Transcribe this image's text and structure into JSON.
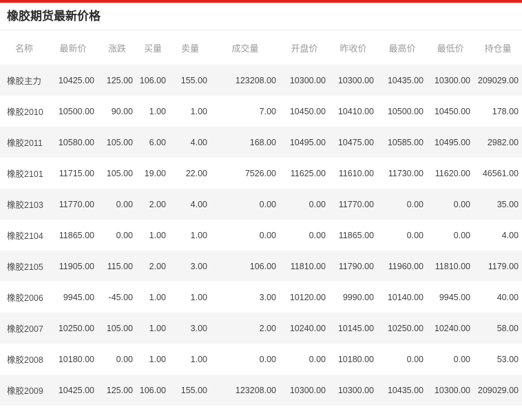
{
  "page": {
    "title": "橡胶期货最新价格"
  },
  "colors": {
    "accent_bar_red": "#e2231a",
    "price_up_red": "#ff1e0e",
    "price_down_green": "#0a9b0a",
    "neutral_text": "#404040",
    "header_text_gray": "#9b9b9b",
    "row_stripe": "#f5f5f5"
  },
  "table": {
    "headers": [
      "名称",
      "最新价",
      "涨跌",
      "买量",
      "卖量",
      "成交量",
      "开盘价",
      "昨收价",
      "最高价",
      "最低价",
      "持仓量"
    ],
    "header_keys": [
      "name",
      "latest-price",
      "change",
      "buy-volume",
      "sell-volume",
      "volume",
      "open-price",
      "prev-close",
      "high-price",
      "low-price",
      "open-interest"
    ],
    "rows": [
      {
        "name": "橡胶主力",
        "cells": [
          {
            "v": "10425.00",
            "c": "red"
          },
          {
            "v": "125.00",
            "c": "red"
          },
          {
            "v": "106.00",
            "c": "dark"
          },
          {
            "v": "155.00",
            "c": "dark"
          },
          {
            "v": "123208.00",
            "c": "dark"
          },
          {
            "v": "10300.00",
            "c": "dark"
          },
          {
            "v": "10300.00",
            "c": "dark"
          },
          {
            "v": "10435.00",
            "c": "red"
          },
          {
            "v": "10300.00",
            "c": "dark"
          },
          {
            "v": "209029.00",
            "c": "dark"
          }
        ]
      },
      {
        "name": "橡胶2010",
        "cells": [
          {
            "v": "10500.00",
            "c": "red"
          },
          {
            "v": "90.00",
            "c": "red"
          },
          {
            "v": "1.00",
            "c": "dark"
          },
          {
            "v": "1.00",
            "c": "dark"
          },
          {
            "v": "7.00",
            "c": "dark"
          },
          {
            "v": "10450.00",
            "c": "red"
          },
          {
            "v": "10410.00",
            "c": "dark"
          },
          {
            "v": "10500.00",
            "c": "red"
          },
          {
            "v": "10450.00",
            "c": "red"
          },
          {
            "v": "178.00",
            "c": "dark"
          }
        ]
      },
      {
        "name": "橡胶2011",
        "cells": [
          {
            "v": "10580.00",
            "c": "red"
          },
          {
            "v": "105.00",
            "c": "red"
          },
          {
            "v": "6.00",
            "c": "dark"
          },
          {
            "v": "4.00",
            "c": "dark"
          },
          {
            "v": "168.00",
            "c": "dark"
          },
          {
            "v": "10495.00",
            "c": "red"
          },
          {
            "v": "10475.00",
            "c": "dark"
          },
          {
            "v": "10585.00",
            "c": "red"
          },
          {
            "v": "10495.00",
            "c": "red"
          },
          {
            "v": "2982.00",
            "c": "dark"
          }
        ]
      },
      {
        "name": "橡胶2101",
        "cells": [
          {
            "v": "11715.00",
            "c": "red"
          },
          {
            "v": "105.00",
            "c": "red"
          },
          {
            "v": "19.00",
            "c": "dark"
          },
          {
            "v": "22.00",
            "c": "dark"
          },
          {
            "v": "7526.00",
            "c": "dark"
          },
          {
            "v": "11625.00",
            "c": "red"
          },
          {
            "v": "11610.00",
            "c": "dark"
          },
          {
            "v": "11730.00",
            "c": "red"
          },
          {
            "v": "11620.00",
            "c": "red"
          },
          {
            "v": "46561.00",
            "c": "dark"
          }
        ]
      },
      {
        "name": "橡胶2103",
        "cells": [
          {
            "v": "11770.00",
            "c": "dark"
          },
          {
            "v": "0.00",
            "c": "dark"
          },
          {
            "v": "2.00",
            "c": "dark"
          },
          {
            "v": "4.00",
            "c": "dark"
          },
          {
            "v": "0.00",
            "c": "dark"
          },
          {
            "v": "0.00",
            "c": "dark"
          },
          {
            "v": "11770.00",
            "c": "dark"
          },
          {
            "v": "0.00",
            "c": "dark"
          },
          {
            "v": "0.00",
            "c": "dark"
          },
          {
            "v": "35.00",
            "c": "dark"
          }
        ]
      },
      {
        "name": "橡胶2104",
        "cells": [
          {
            "v": "11865.00",
            "c": "dark"
          },
          {
            "v": "0.00",
            "c": "dark"
          },
          {
            "v": "1.00",
            "c": "dark"
          },
          {
            "v": "1.00",
            "c": "dark"
          },
          {
            "v": "0.00",
            "c": "dark"
          },
          {
            "v": "0.00",
            "c": "dark"
          },
          {
            "v": "11865.00",
            "c": "dark"
          },
          {
            "v": "0.00",
            "c": "dark"
          },
          {
            "v": "0.00",
            "c": "dark"
          },
          {
            "v": "4.00",
            "c": "dark"
          }
        ]
      },
      {
        "name": "橡胶2105",
        "cells": [
          {
            "v": "11905.00",
            "c": "red"
          },
          {
            "v": "115.00",
            "c": "red"
          },
          {
            "v": "2.00",
            "c": "dark"
          },
          {
            "v": "3.00",
            "c": "dark"
          },
          {
            "v": "106.00",
            "c": "dark"
          },
          {
            "v": "11810.00",
            "c": "red"
          },
          {
            "v": "11790.00",
            "c": "dark"
          },
          {
            "v": "11960.00",
            "c": "red"
          },
          {
            "v": "11810.00",
            "c": "red"
          },
          {
            "v": "1179.00",
            "c": "dark"
          }
        ]
      },
      {
        "name": "橡胶2006",
        "cells": [
          {
            "v": "9945.00",
            "c": "green"
          },
          {
            "v": "-45.00",
            "c": "green"
          },
          {
            "v": "1.00",
            "c": "dark"
          },
          {
            "v": "1.00",
            "c": "dark"
          },
          {
            "v": "3.00",
            "c": "dark"
          },
          {
            "v": "10120.00",
            "c": "red"
          },
          {
            "v": "9990.00",
            "c": "dark"
          },
          {
            "v": "10140.00",
            "c": "red"
          },
          {
            "v": "9945.00",
            "c": "green"
          },
          {
            "v": "40.00",
            "c": "dark"
          }
        ]
      },
      {
        "name": "橡胶2007",
        "cells": [
          {
            "v": "10250.00",
            "c": "red"
          },
          {
            "v": "105.00",
            "c": "red"
          },
          {
            "v": "1.00",
            "c": "dark"
          },
          {
            "v": "3.00",
            "c": "dark"
          },
          {
            "v": "2.00",
            "c": "dark"
          },
          {
            "v": "10240.00",
            "c": "red"
          },
          {
            "v": "10145.00",
            "c": "dark"
          },
          {
            "v": "10250.00",
            "c": "red"
          },
          {
            "v": "10240.00",
            "c": "red"
          },
          {
            "v": "58.00",
            "c": "dark"
          }
        ]
      },
      {
        "name": "橡胶2008",
        "cells": [
          {
            "v": "10180.00",
            "c": "dark"
          },
          {
            "v": "0.00",
            "c": "dark"
          },
          {
            "v": "1.00",
            "c": "dark"
          },
          {
            "v": "1.00",
            "c": "dark"
          },
          {
            "v": "0.00",
            "c": "dark"
          },
          {
            "v": "0.00",
            "c": "dark"
          },
          {
            "v": "10180.00",
            "c": "dark"
          },
          {
            "v": "0.00",
            "c": "dark"
          },
          {
            "v": "0.00",
            "c": "dark"
          },
          {
            "v": "53.00",
            "c": "dark"
          }
        ]
      },
      {
        "name": "橡胶2009",
        "cells": [
          {
            "v": "10425.00",
            "c": "red"
          },
          {
            "v": "125.00",
            "c": "red"
          },
          {
            "v": "106.00",
            "c": "dark"
          },
          {
            "v": "155.00",
            "c": "dark"
          },
          {
            "v": "123208.00",
            "c": "dark"
          },
          {
            "v": "10300.00",
            "c": "dark"
          },
          {
            "v": "10300.00",
            "c": "dark"
          },
          {
            "v": "10435.00",
            "c": "red"
          },
          {
            "v": "10300.00",
            "c": "dark"
          },
          {
            "v": "209029.00",
            "c": "dark"
          }
        ]
      }
    ]
  }
}
